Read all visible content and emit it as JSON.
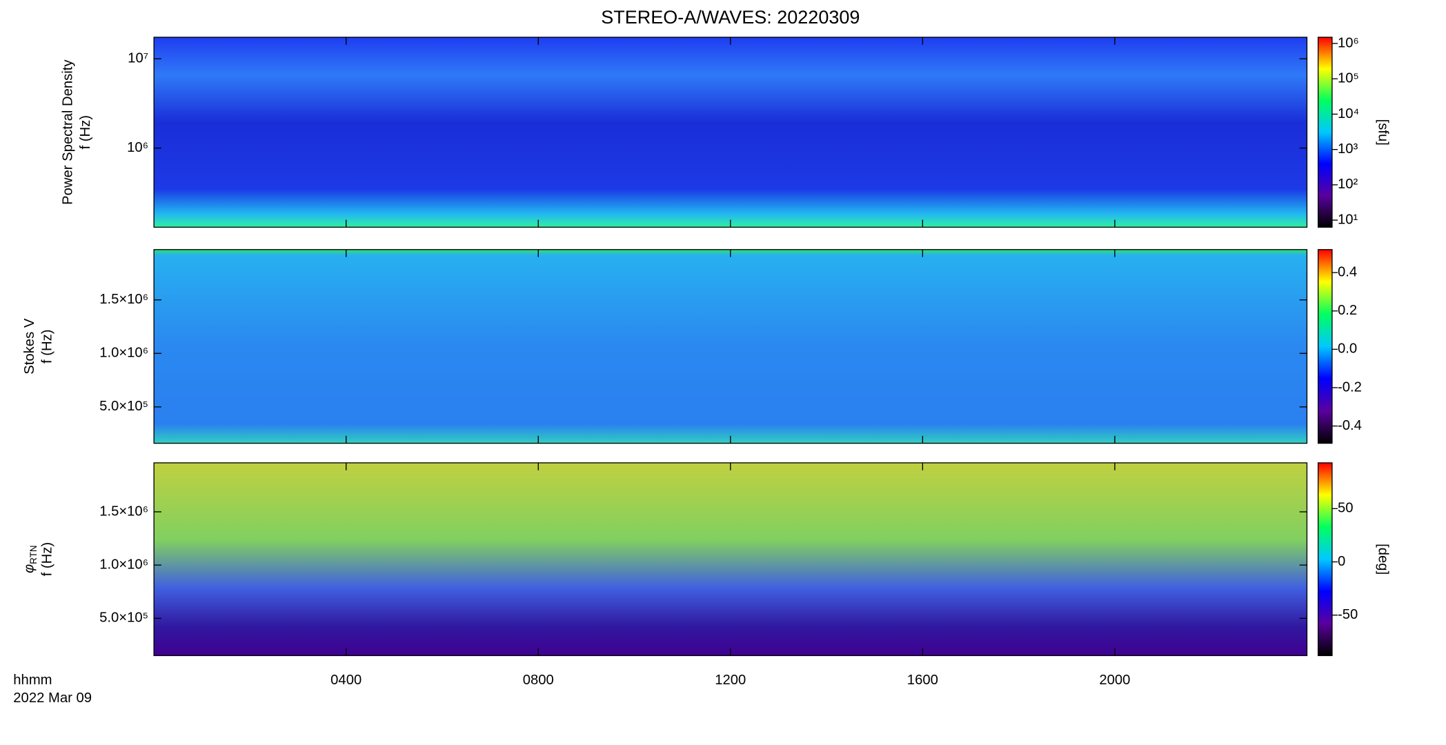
{
  "chart_data": [
    {
      "type": "heatmap",
      "title": "STEREO-A/WAVES: 20220309",
      "ylabel": [
        "Power Spectral Density",
        "f (Hz)"
      ],
      "xlim": [
        0,
        24
      ],
      "ylim": [
        130000,
        17400000
      ],
      "ylog": true,
      "yticks": [
        {
          "value": 1000000,
          "label": "10⁶"
        },
        {
          "value": 10000000,
          "label": "10⁷"
        }
      ],
      "colorbar_label": "[sfu]",
      "clim": [
        6.3,
        1500000
      ],
      "clog": true,
      "cticks": [
        {
          "value": 10,
          "label": "10¹"
        },
        {
          "value": 100,
          "label": "10²"
        },
        {
          "value": 1000,
          "label": "10³"
        },
        {
          "value": 10000,
          "label": "10⁴"
        },
        {
          "value": 100000,
          "label": "10⁵"
        },
        {
          "value": 1000000,
          "label": "10⁶"
        }
      ],
      "colormap": [
        "#000000",
        "#5a00a0",
        "#0000ff",
        "#00c8ff",
        "#00ff60",
        "#ffff00",
        "#ff0000"
      ]
    },
    {
      "type": "heatmap",
      "ylabel": [
        "Stokes V",
        "f (Hz)"
      ],
      "xlim": [
        0,
        24
      ],
      "ylim": [
        160000,
        1970000
      ],
      "ylog": false,
      "yticks": [
        {
          "value": 500000,
          "label": "5.0×10⁵"
        },
        {
          "value": 1000000,
          "label": "1.0×10⁶"
        },
        {
          "value": 1500000,
          "label": "1.5×10⁶"
        }
      ],
      "clim": [
        -0.49,
        0.52
      ],
      "clog": false,
      "cticks": [
        -0.4,
        -0.2,
        {
          "value": 0,
          "label": "0.0"
        },
        0.2,
        0.4
      ],
      "colormap": [
        "#000000",
        "#5a00a0",
        "#0000ff",
        "#00c8ff",
        "#00ff60",
        "#ffff00",
        "#ff0000"
      ]
    },
    {
      "type": "heatmap",
      "ylabel_symbol": "φ",
      "ylabel_subscript": "RTN",
      "ylabel": [
        "f (Hz)"
      ],
      "xlim": [
        0,
        24
      ],
      "ylim": [
        150000,
        1960000
      ],
      "ylog": false,
      "yticks": [
        {
          "value": 500000,
          "label": "5.0×10⁵"
        },
        {
          "value": 1000000,
          "label": "1.0×10⁶"
        },
        {
          "value": 1500000,
          "label": "1.5×10⁶"
        }
      ],
      "colorbar_label": "[deg]",
      "clim": [
        -88,
        93
      ],
      "clog": false,
      "cticks": [
        -50,
        0,
        50
      ],
      "colormap": [
        "#000000",
        "#5a00a0",
        "#0000ff",
        "#00c8ff",
        "#00ff60",
        "#ffff00",
        "#ff0000"
      ],
      "xticks": [
        {
          "value": 4,
          "label": "0400"
        },
        {
          "value": 8,
          "label": "0800"
        },
        {
          "value": 12,
          "label": "1200"
        },
        {
          "value": 16,
          "label": "1600"
        },
        {
          "value": 20,
          "label": "2000"
        }
      ],
      "xlabel": [
        "hhmm",
        "2022 Mar 09"
      ]
    }
  ]
}
